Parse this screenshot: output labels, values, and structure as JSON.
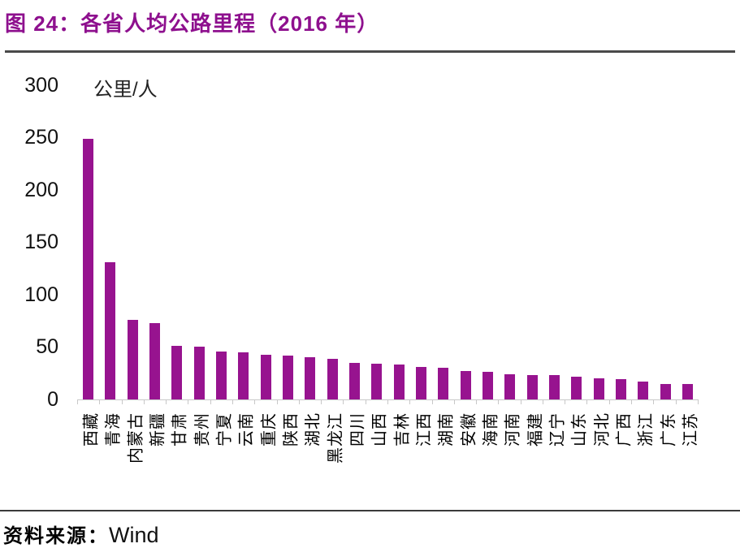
{
  "header": {
    "title": "图 24：各省人均公路里程（2016 年）"
  },
  "chart_data": {
    "type": "bar",
    "title": "各省人均公路里程（2016 年）",
    "unit_label": "公里/人",
    "categories": [
      "西藏",
      "青海",
      "内蒙古",
      "新疆",
      "甘肃",
      "贵州",
      "宁夏",
      "云南",
      "重庆",
      "陕西",
      "湖北",
      "黑龙江",
      "四川",
      "山西",
      "吉林",
      "江西",
      "湖南",
      "安徽",
      "海南",
      "河南",
      "福建",
      "辽宁",
      "山东",
      "河北",
      "广西",
      "浙江",
      "广东",
      "江苏"
    ],
    "values": [
      249,
      131,
      76,
      73,
      51,
      50,
      46,
      45,
      43,
      42,
      40,
      39,
      35,
      34,
      33,
      31,
      30,
      27,
      26,
      24,
      23,
      23,
      22,
      20,
      19,
      17,
      15,
      15
    ],
    "xlabel": "",
    "ylabel": "公里/人",
    "ylim": [
      0,
      300
    ],
    "yticks": [
      0,
      50,
      100,
      150,
      200,
      250,
      300
    ],
    "grid": "off",
    "legend": "none",
    "bar_color": "#97138F"
  },
  "footer": {
    "source_prefix": "资料来源：",
    "source_name": "Wind"
  },
  "colors": {
    "title": "#8E108E",
    "bar": "#97138F",
    "axis": "#C8C8C8",
    "divider_top": "#4A4A4A",
    "divider_bottom": "#3A3A3A"
  }
}
